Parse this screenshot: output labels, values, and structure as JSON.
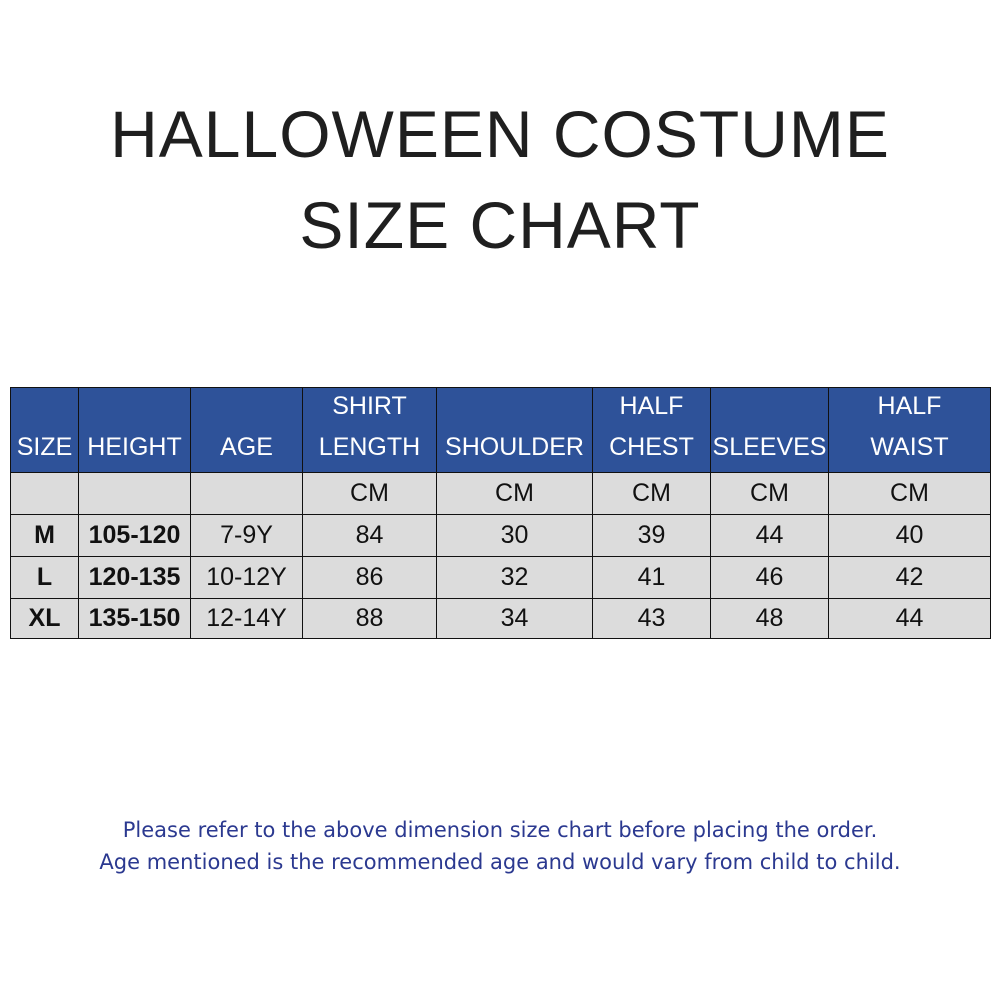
{
  "header": {
    "title": [
      "HALLOWEEN COSTUME",
      "SIZE CHART"
    ]
  },
  "table": {
    "columns": [
      [
        "SIZE"
      ],
      [
        "HEIGHT"
      ],
      [
        "AGE"
      ],
      [
        "SHIRT",
        "LENGTH"
      ],
      [
        "SHOULDER"
      ],
      [
        "HALF",
        "CHEST"
      ],
      [
        "SLEEVES"
      ],
      [
        "HALF",
        "WAIST"
      ]
    ],
    "units": [
      "CM",
      "CM",
      "CM",
      "CM",
      "CM"
    ],
    "rows": [
      [
        "M",
        "105-120",
        "7-9Y",
        84,
        30,
        39,
        44,
        40
      ],
      [
        "L",
        "120-135",
        "10-12Y",
        86,
        32,
        41,
        46,
        42
      ],
      [
        "XL",
        "135-150",
        "12-14Y",
        88,
        34,
        43,
        48,
        44
      ]
    ]
  },
  "footer": {
    "notes": [
      "Please refer to the above dimension size chart before placing the order.",
      "Age mentioned is the recommended age and would vary from child to child."
    ]
  }
}
